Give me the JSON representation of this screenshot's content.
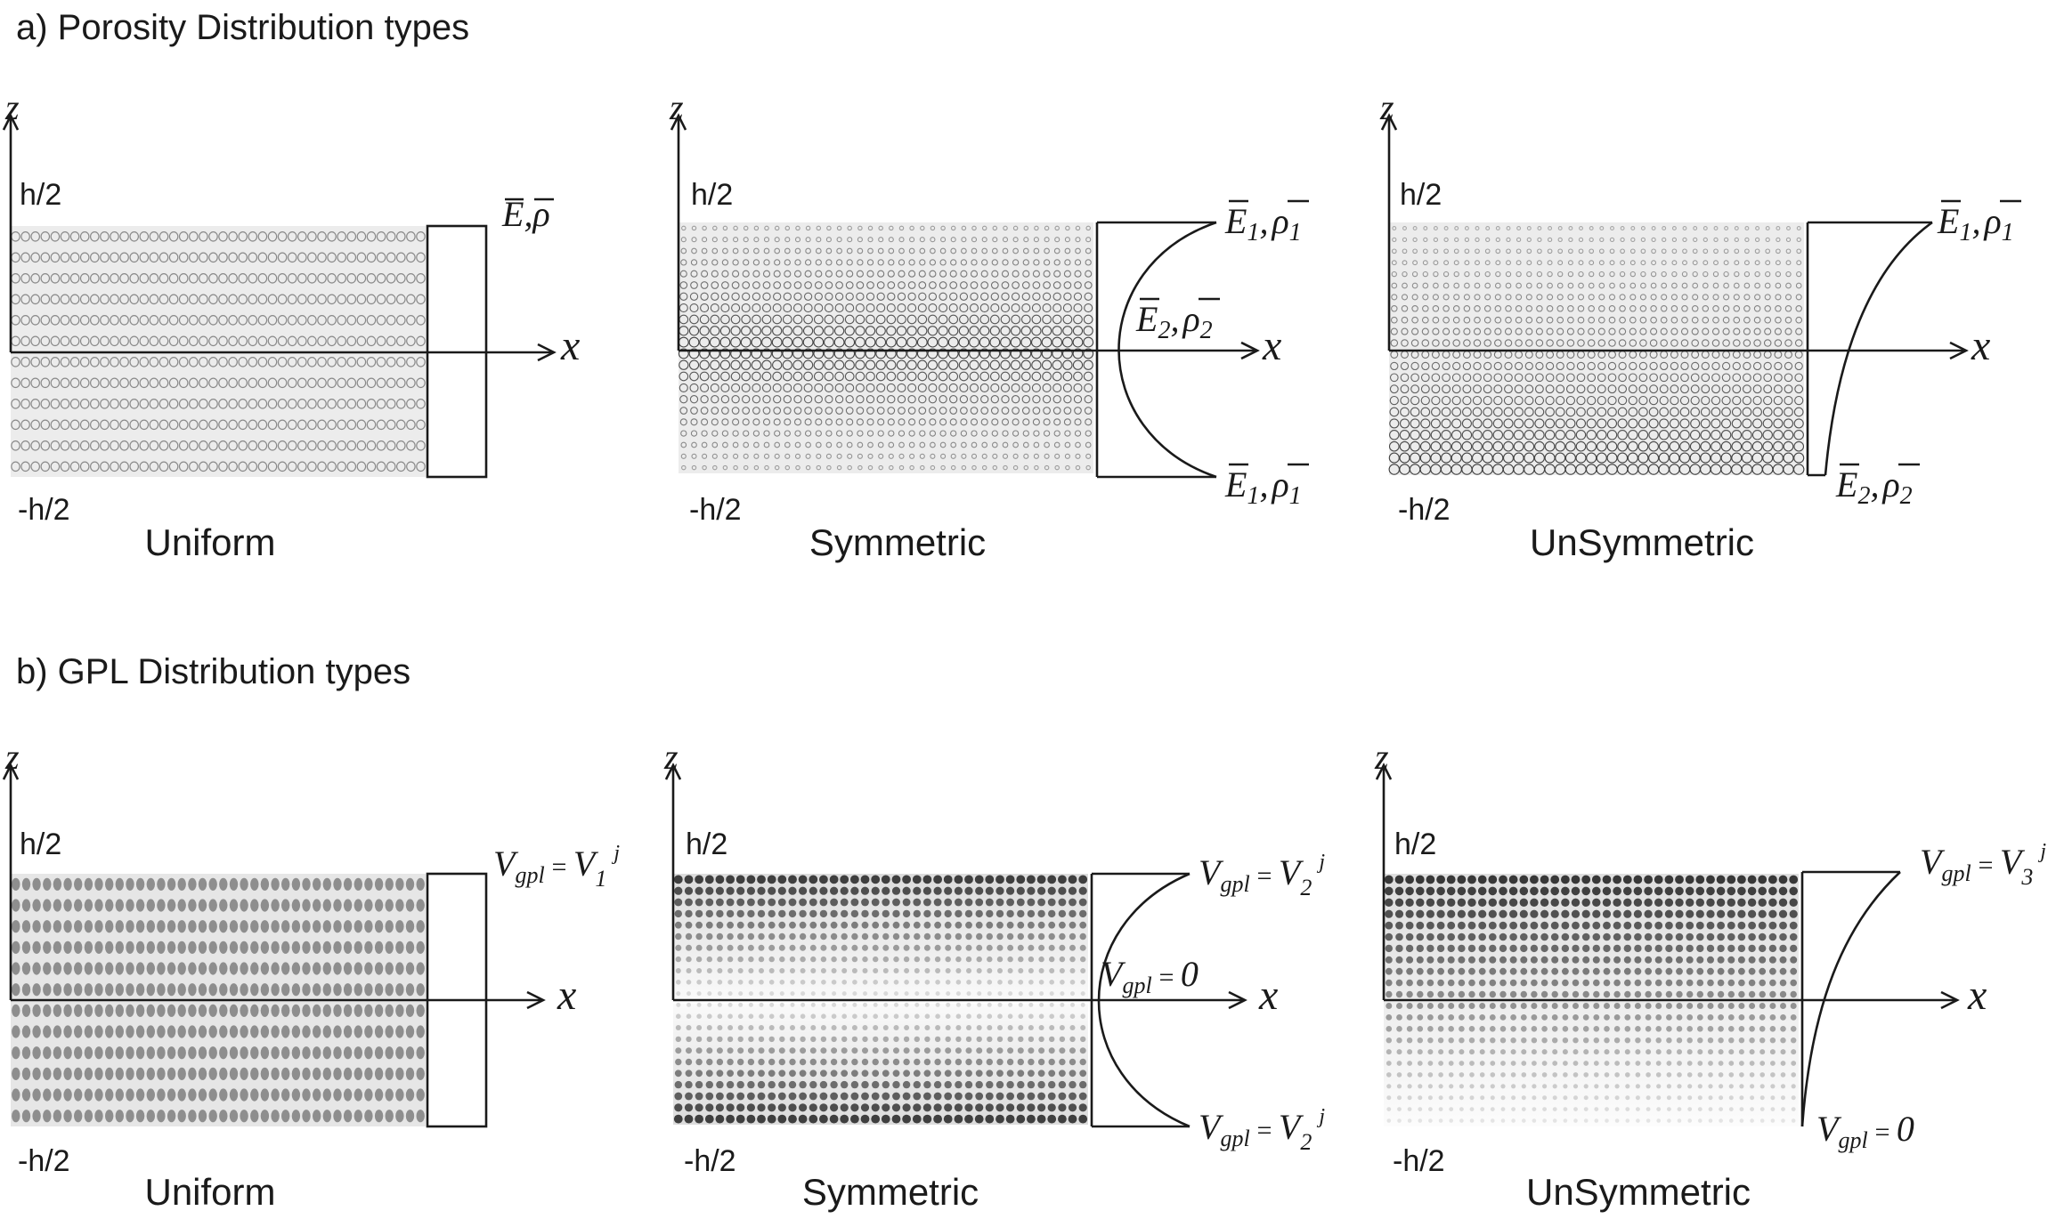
{
  "section_a": {
    "title": "a) Porosity Distribution types",
    "panels": [
      {
        "type": "uniform",
        "label": "Uniform",
        "axis_z": "z",
        "axis_x": "x",
        "top_label": "h/2",
        "bottom_label": "-h/2",
        "props": [
          {
            "pos": "top",
            "E": "E",
            "sep": ",",
            "rho": "ρ",
            "sub": ""
          }
        ]
      },
      {
        "type": "symmetric",
        "label": "Symmetric",
        "axis_z": "z",
        "axis_x": "x",
        "top_label": "h/2",
        "bottom_label": "-h/2",
        "props": [
          {
            "pos": "top",
            "E": "E",
            "sep": ",",
            "rho": "ρ",
            "sub": "1"
          },
          {
            "pos": "mid",
            "E": "E",
            "sep": ",",
            "rho": "ρ",
            "sub": "2"
          },
          {
            "pos": "bottom",
            "E": "E",
            "sep": ",",
            "rho": "ρ",
            "sub": "1"
          }
        ]
      },
      {
        "type": "unsymmetric",
        "label": "UnSymmetric",
        "axis_z": "z",
        "axis_x": "x",
        "top_label": "h/2",
        "bottom_label": "-h/2",
        "props": [
          {
            "pos": "top",
            "E": "E",
            "sep": ",",
            "rho": "ρ",
            "sub": "1"
          },
          {
            "pos": "bottom",
            "E": "E",
            "sep": ",",
            "rho": "ρ",
            "sub": "2"
          }
        ]
      }
    ]
  },
  "section_b": {
    "title": "b) GPL Distribution types",
    "panels": [
      {
        "type": "uniform",
        "label": "Uniform",
        "axis_z": "z",
        "axis_x": "x",
        "top_label": "h/2",
        "bottom_label": "-h/2",
        "props": [
          {
            "pos": "top",
            "V": "V",
            "vsub": "gpl",
            "eq": "=",
            "rhs": "V",
            "rhs_sub": "1",
            "rhs_sup": "j"
          }
        ]
      },
      {
        "type": "symmetric",
        "label": "Symmetric",
        "axis_z": "z",
        "axis_x": "x",
        "top_label": "h/2",
        "bottom_label": "-h/2",
        "props": [
          {
            "pos": "top",
            "V": "V",
            "vsub": "gpl",
            "eq": "=",
            "rhs": "V",
            "rhs_sub": "2",
            "rhs_sup": "j"
          },
          {
            "pos": "mid",
            "V": "V",
            "vsub": "gpl",
            "eq": "=",
            "rhs": "0",
            "rhs_sub": "",
            "rhs_sup": ""
          },
          {
            "pos": "bottom",
            "V": "V",
            "vsub": "gpl",
            "eq": "=",
            "rhs": "V",
            "rhs_sub": "2",
            "rhs_sup": "j"
          }
        ]
      },
      {
        "type": "unsymmetric",
        "label": "UnSymmetric",
        "axis_z": "z",
        "axis_x": "x",
        "top_label": "h/2",
        "bottom_label": "-h/2",
        "props": [
          {
            "pos": "top",
            "V": "V",
            "vsub": "gpl",
            "eq": "=",
            "rhs": "V",
            "rhs_sub": "3",
            "rhs_sup": "j"
          },
          {
            "pos": "bottom",
            "V": "V",
            "vsub": "gpl",
            "eq": "=",
            "rhs": "0",
            "rhs_sub": "",
            "rhs_sup": ""
          }
        ]
      }
    ]
  }
}
